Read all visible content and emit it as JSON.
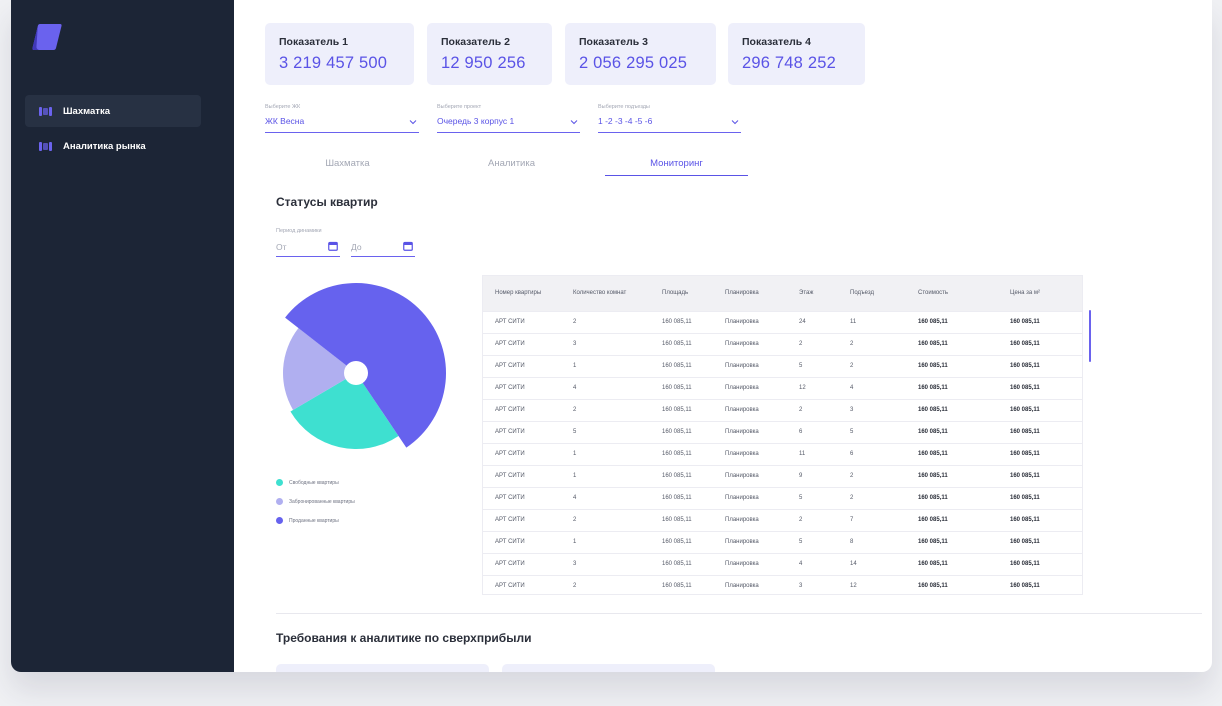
{
  "colors": {
    "sidebar": "#1c2536",
    "accent": "#5a53e6",
    "free": "#3ee0d0",
    "reserved": "#b0aff0",
    "sold": "#6662ee"
  },
  "sidebar": {
    "items": [
      {
        "label": "Шахматка",
        "icon": "building-icon",
        "active": true
      },
      {
        "label": "Аналитика рынка",
        "icon": "building-icon",
        "active": false
      }
    ]
  },
  "kpis": [
    {
      "label": "Показатель 1",
      "value": "3 219 457 500"
    },
    {
      "label": "Показатель 2",
      "value": "12 950 256"
    },
    {
      "label": "Показатель 3",
      "value": "2 056 295 025"
    },
    {
      "label": "Показатель 4",
      "value": "296 748 252"
    }
  ],
  "filters": [
    {
      "label": "Выберите ЖК",
      "value": "ЖК Весна"
    },
    {
      "label": "Выберите проект",
      "value": "Очередь 3 корпус 1"
    },
    {
      "label": "Выберите подъезды",
      "value": "1 -2 -3 -4 -5 -6"
    }
  ],
  "tabs": [
    {
      "label": "Шахматка",
      "active": false
    },
    {
      "label": "Аналитика",
      "active": false
    },
    {
      "label": "Мониторинг",
      "active": true
    }
  ],
  "statuses": {
    "title": "Статусы квартир",
    "period_label": "Период динамики",
    "from_placeholder": "От",
    "to_placeholder": "До"
  },
  "chart_data": {
    "type": "pie",
    "series": [
      {
        "name": "Свободные квартиры",
        "value": 26
      },
      {
        "name": "Забронированные квартиры",
        "value": 19
      },
      {
        "name": "Проданные квартиры",
        "value": 55
      }
    ]
  },
  "legend": [
    {
      "label": "Свободные квартиры",
      "color": "#3ee0d0"
    },
    {
      "label": "Забронированные квартиры",
      "color": "#b0aff0"
    },
    {
      "label": "Проданные квартиры",
      "color": "#6662ee"
    }
  ],
  "table": {
    "headers": [
      "Номер квартиры",
      "Количество комнат",
      "Площадь",
      "Планировка",
      "Этаж",
      "Подъезд",
      "Стоимость",
      "Цена за м²"
    ],
    "rows": [
      [
        "АРТ СИТИ",
        "2",
        "160 085,11",
        "Планировка",
        "24",
        "11",
        "160 085,11",
        "160 085,11"
      ],
      [
        "АРТ СИТИ",
        "3",
        "160 085,11",
        "Планировка",
        "2",
        "2",
        "160 085,11",
        "160 085,11"
      ],
      [
        "АРТ СИТИ",
        "1",
        "160 085,11",
        "Планировка",
        "5",
        "2",
        "160 085,11",
        "160 085,11"
      ],
      [
        "АРТ СИТИ",
        "4",
        "160 085,11",
        "Планировка",
        "12",
        "4",
        "160 085,11",
        "160 085,11"
      ],
      [
        "АРТ СИТИ",
        "2",
        "160 085,11",
        "Планировка",
        "2",
        "3",
        "160 085,11",
        "160 085,11"
      ],
      [
        "АРТ СИТИ",
        "5",
        "160 085,11",
        "Планировка",
        "6",
        "5",
        "160 085,11",
        "160 085,11"
      ],
      [
        "АРТ СИТИ",
        "1",
        "160 085,11",
        "Планировка",
        "11",
        "6",
        "160 085,11",
        "160 085,11"
      ],
      [
        "АРТ СИТИ",
        "1",
        "160 085,11",
        "Планировка",
        "9",
        "2",
        "160 085,11",
        "160 085,11"
      ],
      [
        "АРТ СИТИ",
        "4",
        "160 085,11",
        "Планировка",
        "5",
        "2",
        "160 085,11",
        "160 085,11"
      ],
      [
        "АРТ СИТИ",
        "2",
        "160 085,11",
        "Планировка",
        "2",
        "7",
        "160 085,11",
        "160 085,11"
      ],
      [
        "АРТ СИТИ",
        "1",
        "160 085,11",
        "Планировка",
        "5",
        "8",
        "160 085,11",
        "160 085,11"
      ],
      [
        "АРТ СИТИ",
        "3",
        "160 085,11",
        "Планировка",
        "4",
        "14",
        "160 085,11",
        "160 085,11"
      ],
      [
        "АРТ СИТИ",
        "2",
        "160 085,11",
        "Планировка",
        "3",
        "12",
        "160 085,11",
        "160 085,11"
      ]
    ]
  },
  "requirements": {
    "title": "Требования к аналитике по сверхприбыли"
  }
}
